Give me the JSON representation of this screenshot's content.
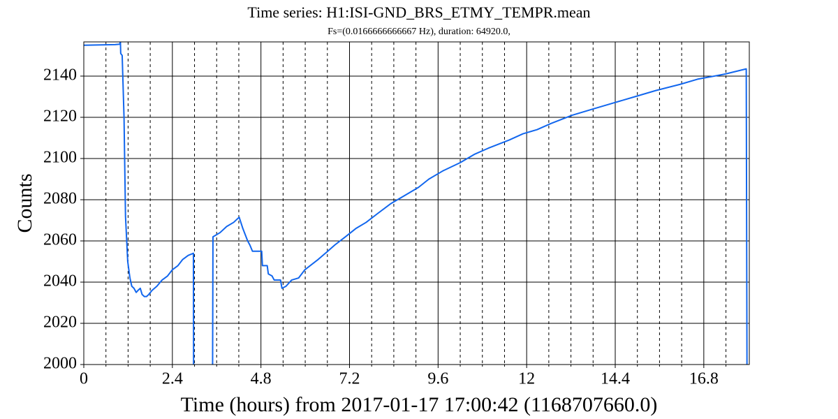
{
  "chart_data": {
    "type": "line",
    "title": "Time series:  H1:ISI-GND_BRS_ETMY_TEMPR.mean",
    "subtitle": "Fs=(0.0166666666667 Hz), duration: 64920.0,",
    "xlabel": "Time (hours) from 2017-01-17 17:00:42 (1168707660.0)",
    "ylabel": "Counts",
    "color": "#1166ee",
    "grid": true,
    "xlim": [
      0,
      18.033
    ],
    "ylim": [
      2000,
      2156.6
    ],
    "xticks": [
      0,
      2.4,
      4.8,
      7.2,
      9.6,
      12,
      14.4,
      16.8
    ],
    "xminorticks": [
      0.6,
      1.2,
      1.8,
      3.0,
      3.6,
      4.2,
      5.4,
      6.0,
      6.6,
      7.8,
      8.4,
      9.0,
      10.2,
      10.8,
      11.4,
      12.6,
      13.2,
      13.8,
      15.0,
      15.6,
      16.2,
      17.4
    ],
    "yticks": [
      2000,
      2020,
      2040,
      2060,
      2080,
      2100,
      2120,
      2140
    ],
    "x": [
      0,
      0.85,
      0.98,
      0.99,
      1.0,
      1.04,
      1.09,
      1.13,
      1.19,
      1.25,
      1.3,
      1.36,
      1.42,
      1.47,
      1.53,
      1.58,
      1.64,
      1.7,
      1.76,
      1.85,
      1.98,
      2.12,
      2.27,
      2.4,
      2.55,
      2.68,
      2.83,
      2.97,
      2.975,
      3.2,
      3.49,
      3.5,
      3.69,
      3.87,
      4.06,
      4.21,
      4.31,
      4.44,
      4.5,
      4.57,
      4.82,
      4.84,
      4.97,
      5.0,
      5.1,
      5.16,
      5.33,
      5.37,
      5.48,
      5.63,
      5.82,
      5.99,
      6.35,
      6.61,
      6.8,
      7.09,
      7.37,
      7.65,
      7.94,
      8.31,
      8.69,
      9.07,
      9.35,
      9.73,
      10.2,
      10.58,
      10.96,
      11.53,
      11.9,
      12.28,
      12.66,
      13.23,
      13.79,
      14.36,
      14.93,
      15.5,
      16.16,
      16.63,
      17.38,
      17.95,
      17.97
    ],
    "values": [
      2155,
      2155.3,
      2155.5,
      2158,
      2151,
      2150,
      2120,
      2072,
      2050,
      2042,
      2038,
      2037,
      2035,
      2036,
      2037,
      2034,
      2033,
      2033,
      2034,
      2036,
      2038,
      2041,
      2043,
      2046,
      2048,
      2051,
      2053,
      2054,
      2000,
      null,
      2000,
      2062,
      2064,
      2067,
      2069,
      2071.5,
      2066,
      2060,
      2058,
      2055,
      2055,
      2048,
      2048,
      2044,
      2043,
      2041,
      2041,
      2037,
      2038,
      2041,
      2042,
      2046,
      2051,
      2055,
      2058,
      2062,
      2066,
      2069,
      2073,
      2078,
      2082,
      2086,
      2090,
      2094,
      2098,
      2102,
      2105,
      2109,
      2112,
      2114,
      2117,
      2121,
      2124,
      2127,
      2130,
      2133,
      2136,
      2138.5,
      2141,
      2143.5,
      2000
    ]
  }
}
